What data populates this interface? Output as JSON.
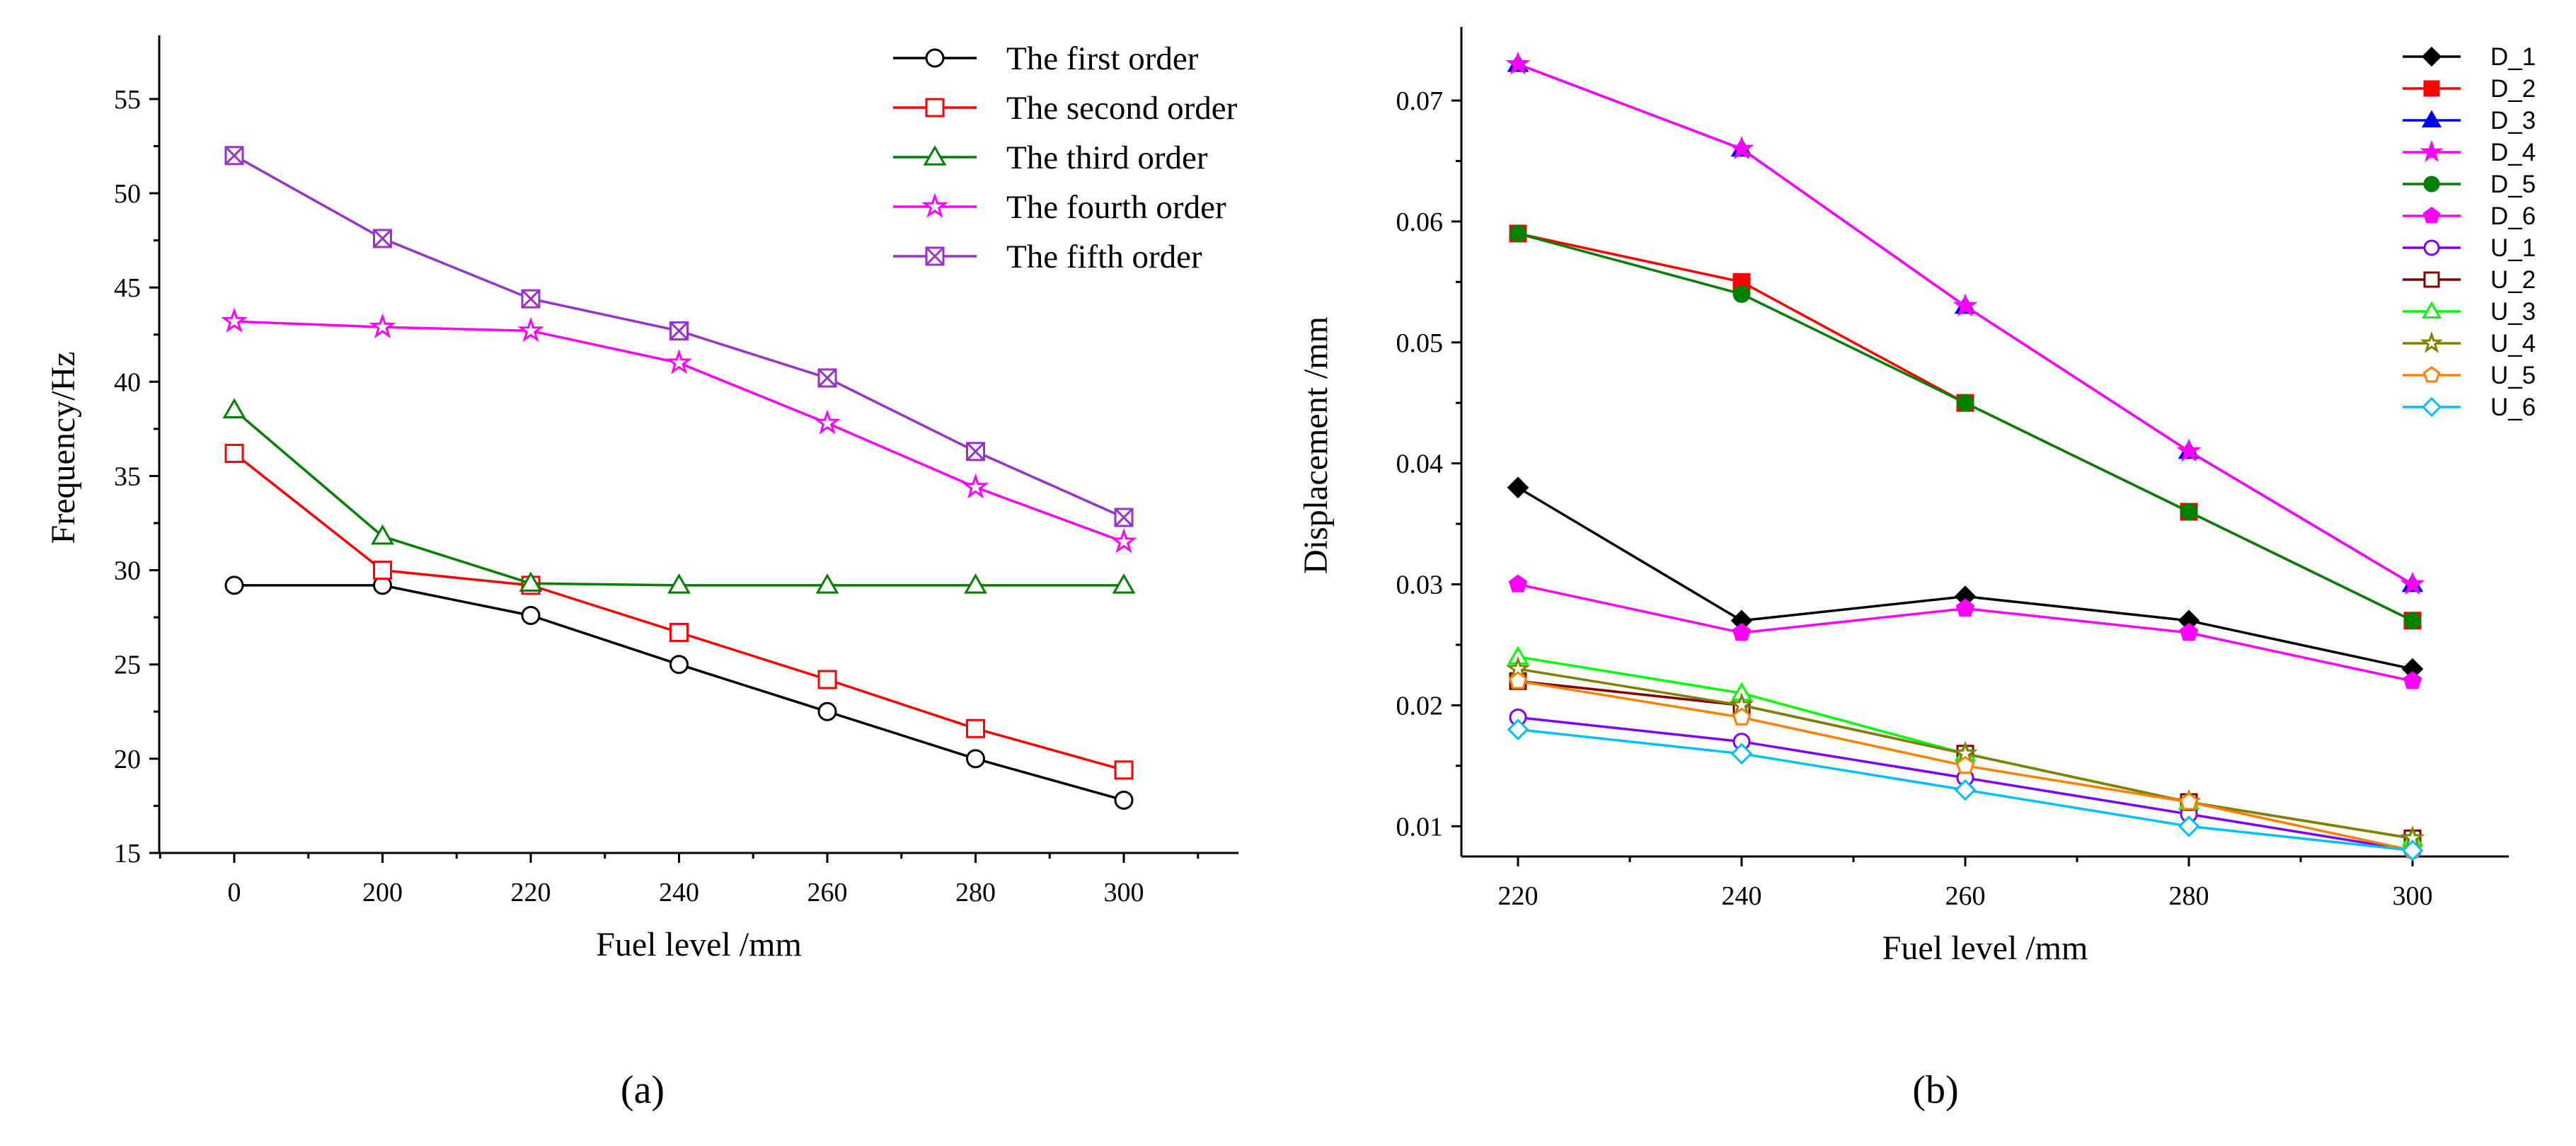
{
  "chart_data": [
    {
      "type": "line",
      "panel_label": "(a)",
      "xlabel": "Fuel level /mm",
      "ylabel": "Frequency/Hz",
      "categories": [
        "0",
        "200",
        "220",
        "240",
        "260",
        "280",
        "300"
      ],
      "ylim": [
        15,
        58
      ],
      "yticks": [
        15,
        20,
        25,
        30,
        35,
        40,
        45,
        50,
        55
      ],
      "grid": false,
      "legend": "top-right",
      "series": [
        {
          "name": "The first order",
          "color": "#000000",
          "marker": "circle",
          "values": [
            29.2,
            29.2,
            27.6,
            25.0,
            22.5,
            20.0,
            17.8
          ]
        },
        {
          "name": "The second order",
          "color": "#ff0000",
          "marker": "square",
          "values": [
            36.2,
            30.0,
            29.2,
            26.7,
            24.2,
            21.6,
            19.4
          ]
        },
        {
          "name": "The third order",
          "color": "#008000",
          "marker": "triangle",
          "values": [
            38.5,
            31.8,
            29.3,
            29.2,
            29.2,
            29.2,
            29.2
          ]
        },
        {
          "name": "The fourth order",
          "color": "#ff00ff",
          "marker": "star",
          "values": [
            43.2,
            42.9,
            42.7,
            41.0,
            37.8,
            34.4,
            31.5
          ]
        },
        {
          "name": "The fifth order",
          "color": "#9932cc",
          "marker": "cross-square",
          "values": [
            52.0,
            47.6,
            44.4,
            42.7,
            40.2,
            36.3,
            32.8
          ]
        }
      ]
    },
    {
      "type": "line",
      "panel_label": "(b)",
      "xlabel": "Fuel level /mm",
      "ylabel": "Displacement /mm",
      "categories": [
        "220",
        "240",
        "260",
        "280",
        "300"
      ],
      "ylim": [
        0.0075,
        0.0755
      ],
      "yticks": [
        "0.01",
        "0.02",
        "0.03",
        "0.04",
        "0.05",
        "0.06",
        "0.07"
      ],
      "grid": false,
      "legend": "top-right",
      "series": [
        {
          "name": "D_1",
          "color": "#000000",
          "marker": "diamond-filled",
          "values": [
            0.038,
            0.027,
            0.029,
            0.027,
            0.023
          ]
        },
        {
          "name": "D_2",
          "color": "#ff0000",
          "marker": "square-filled",
          "values": [
            0.059,
            0.055,
            0.045,
            0.036,
            0.027
          ]
        },
        {
          "name": "D_3",
          "color": "#0000ff",
          "marker": "triangle-filled",
          "values": [
            0.073,
            0.066,
            0.053,
            0.041,
            0.03
          ]
        },
        {
          "name": "D_4",
          "color": "#ff00ff",
          "marker": "star-filled",
          "values": [
            0.073,
            0.066,
            0.053,
            0.041,
            0.03
          ]
        },
        {
          "name": "D_5",
          "color": "#008000",
          "marker": "circle-filled",
          "values": [
            0.059,
            0.054,
            0.045,
            0.036,
            0.027
          ]
        },
        {
          "name": "D_6",
          "color": "#ff00ff",
          "marker": "pentagon-filled",
          "values": [
            0.03,
            0.026,
            0.028,
            0.026,
            0.022
          ]
        },
        {
          "name": "U_1",
          "color": "#8000ff",
          "marker": "circle",
          "values": [
            0.019,
            0.017,
            0.014,
            0.011,
            0.008
          ]
        },
        {
          "name": "U_2",
          "color": "#800000",
          "marker": "square",
          "values": [
            0.022,
            0.02,
            0.016,
            0.012,
            0.009
          ]
        },
        {
          "name": "U_3",
          "color": "#00ff00",
          "marker": "triangle",
          "values": [
            0.024,
            0.021,
            0.016,
            0.012,
            0.009
          ]
        },
        {
          "name": "U_4",
          "color": "#808000",
          "marker": "star",
          "values": [
            0.023,
            0.02,
            0.016,
            0.012,
            0.009
          ]
        },
        {
          "name": "U_5",
          "color": "#ff8000",
          "marker": "pentagon",
          "values": [
            0.022,
            0.019,
            0.015,
            0.012,
            0.008
          ]
        },
        {
          "name": "U_6",
          "color": "#00bfff",
          "marker": "diamond",
          "values": [
            0.018,
            0.016,
            0.013,
            0.01,
            0.008
          ]
        }
      ]
    }
  ]
}
